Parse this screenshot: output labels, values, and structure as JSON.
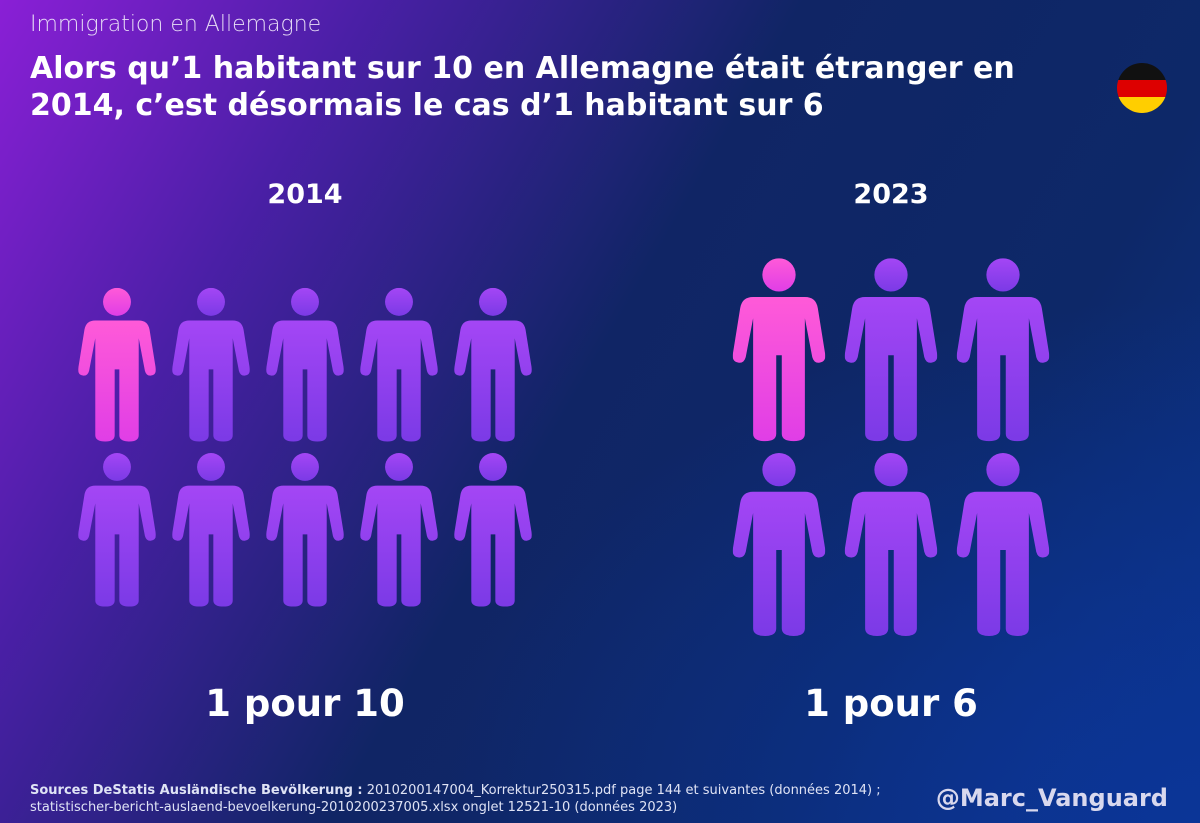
{
  "header": {
    "kicker": "Immigration en Allemagne",
    "title": "Alors qu’1 habitant sur 10 en Allemagne était étranger en 2014, c’est désormais le cas d’1 habitant sur 6"
  },
  "panels": [
    {
      "year": "2014",
      "people": 10,
      "highlighted": 1,
      "label": "1 pour 10"
    },
    {
      "year": "2023",
      "people": 6,
      "highlighted": 1,
      "label": "1 pour 6"
    }
  ],
  "footer": {
    "source_label": "Sources DeStatis Ausländische Bevölkerung :",
    "source_text": "2010200147004_Korrektur250315.pdf page 144 et suivantes (données 2014) ; statistischer-bericht-auslaend-bevoelkerung-2010200237005.xlsx onglet 12521-10  (données 2023)",
    "handle": "@Marc_Vanguard"
  }
}
